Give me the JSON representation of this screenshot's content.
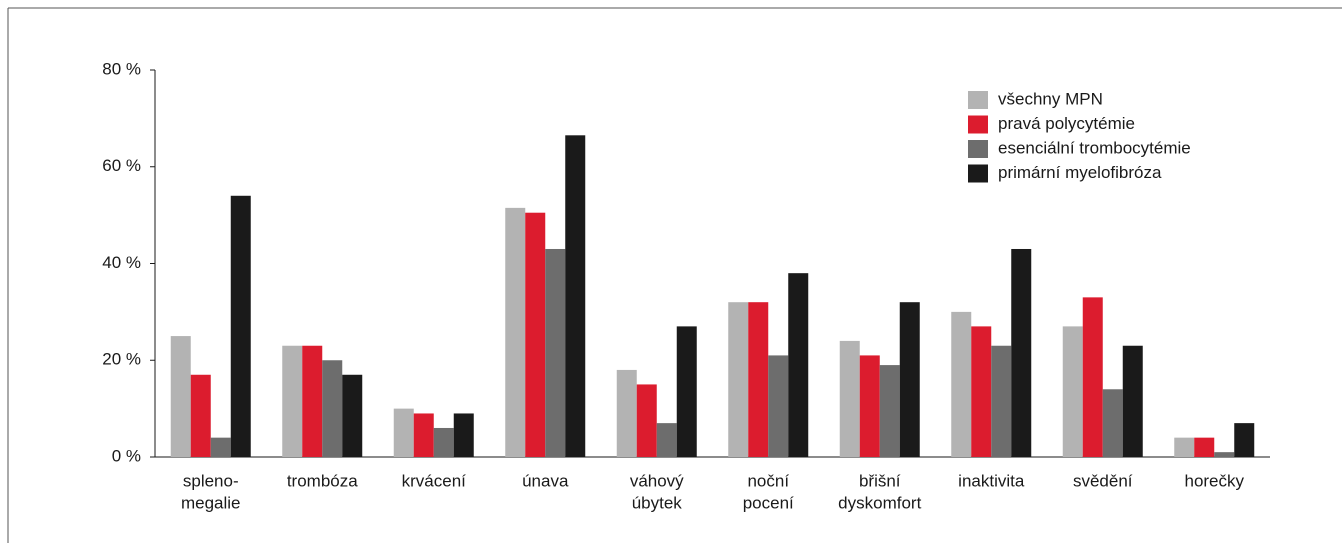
{
  "chart_data": {
    "type": "bar",
    "categories": [
      [
        "spleno-",
        "megalie"
      ],
      [
        "trombóza"
      ],
      [
        "krvácení"
      ],
      [
        "únava"
      ],
      [
        "váhový",
        "úbytek"
      ],
      [
        "noční",
        "pocení"
      ],
      [
        "břišní",
        "dyskomfort"
      ],
      [
        "inaktivita"
      ],
      [
        "svědění"
      ],
      [
        "horečky"
      ]
    ],
    "series": [
      {
        "name": "všechny MPN",
        "color": "#b3b3b3",
        "values": [
          25,
          23,
          10,
          51.5,
          18,
          32,
          24,
          30,
          27,
          4
        ]
      },
      {
        "name": "pravá polycytémie",
        "color": "#dc1c2e",
        "values": [
          17,
          23,
          9,
          50.5,
          15,
          32,
          21,
          27,
          33,
          4
        ]
      },
      {
        "name": "esenciální trombocytémie",
        "color": "#6d6d6d",
        "values": [
          4,
          20,
          6,
          43,
          7,
          21,
          19,
          23,
          14,
          1
        ]
      },
      {
        "name": "primární myelofibróza",
        "color": "#1a1a1a",
        "values": [
          54,
          17,
          9,
          66.5,
          27,
          38,
          32,
          43,
          23,
          7
        ]
      }
    ],
    "ylim": [
      0,
      80
    ],
    "yticks": [
      {
        "value": 0,
        "label": "0 %"
      },
      {
        "value": 20,
        "label": "20 %"
      },
      {
        "value": 40,
        "label": "40 %"
      },
      {
        "value": 60,
        "label": "60 %"
      },
      {
        "value": 80,
        "label": "80 %"
      }
    ],
    "legend": "upper right"
  }
}
